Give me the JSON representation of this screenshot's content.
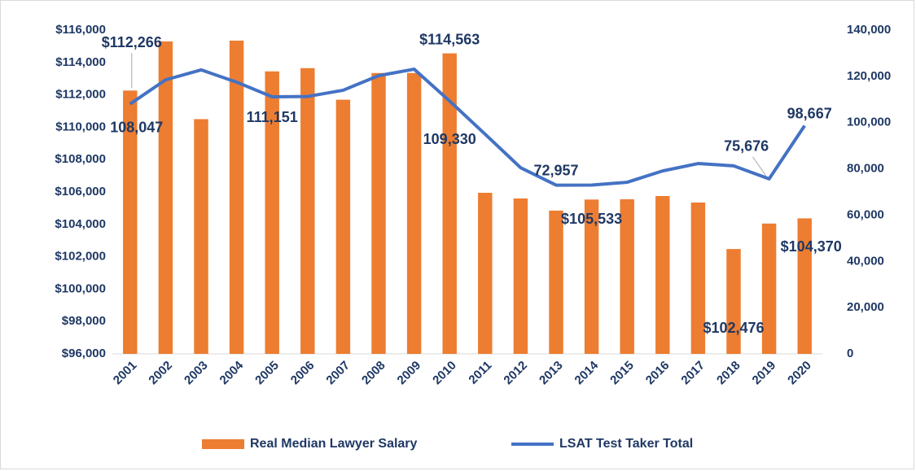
{
  "chart_data": {
    "type": "bar+line",
    "categories": [
      "2001",
      "2002",
      "2003",
      "2004",
      "2005",
      "2006",
      "2007",
      "2008",
      "2009",
      "2010",
      "2011",
      "2012",
      "2013",
      "2014",
      "2015",
      "2016",
      "2017",
      "2018",
      "2019",
      "2020"
    ],
    "series": [
      {
        "name": "Real Median Lawyer Salary",
        "type": "bar",
        "color": "#ed7d31",
        "axis": "y",
        "values": [
          112266,
          115300,
          110500,
          115350,
          113450,
          113650,
          111700,
          113350,
          113350,
          114563,
          105950,
          105600,
          104850,
          105533,
          105550,
          105750,
          105350,
          102476,
          104050,
          104370
        ],
        "value_labels": [
          "$112,266",
          null,
          null,
          null,
          null,
          null,
          null,
          null,
          null,
          "$114,563",
          null,
          null,
          null,
          "$105,533",
          null,
          null,
          null,
          "$102,476",
          null,
          "$104,370"
        ]
      },
      {
        "name": "LSAT Test Taker Total",
        "type": "line",
        "color": "#4472c4",
        "axis": "y2",
        "values": [
          108047,
          118500,
          122800,
          117500,
          111151,
          111300,
          114000,
          120300,
          123100,
          109330,
          95000,
          80500,
          72957,
          73000,
          74200,
          79100,
          82300,
          81300,
          75676,
          98667
        ],
        "value_labels": [
          "108,047",
          null,
          null,
          null,
          "111,151",
          null,
          null,
          null,
          null,
          "109,330",
          null,
          null,
          "72,957",
          null,
          null,
          null,
          null,
          null,
          "75,676",
          "98,667"
        ]
      }
    ],
    "ylim": [
      96000,
      116000
    ],
    "yticks": [
      {
        "value": 96000,
        "label": "$96,000"
      },
      {
        "value": 98000,
        "label": "$98,000"
      },
      {
        "value": 100000,
        "label": "$100,000"
      },
      {
        "value": 102000,
        "label": "$102,000"
      },
      {
        "value": 104000,
        "label": "$104,000"
      },
      {
        "value": 106000,
        "label": "$106,000"
      },
      {
        "value": 108000,
        "label": "$108,000"
      },
      {
        "value": 110000,
        "label": "$110,000"
      },
      {
        "value": 112000,
        "label": "$112,000"
      },
      {
        "value": 114000,
        "label": "$114,000"
      },
      {
        "value": 116000,
        "label": "$116,000"
      }
    ],
    "y2lim": [
      0,
      140000
    ],
    "y2ticks": [
      0,
      {
        "value": 20000,
        "label": "20,000"
      },
      {
        "value": 40000,
        "label": "40,000"
      },
      {
        "value": 60000,
        "label": "60,000"
      },
      {
        "value": 80000,
        "label": "80,000"
      },
      {
        "value": 100000,
        "label": "100,000"
      },
      {
        "value": 120000,
        "label": "120,000"
      },
      {
        "value": 140000,
        "label": "140,000"
      }
    ],
    "grid": false,
    "legend": "bottom"
  }
}
